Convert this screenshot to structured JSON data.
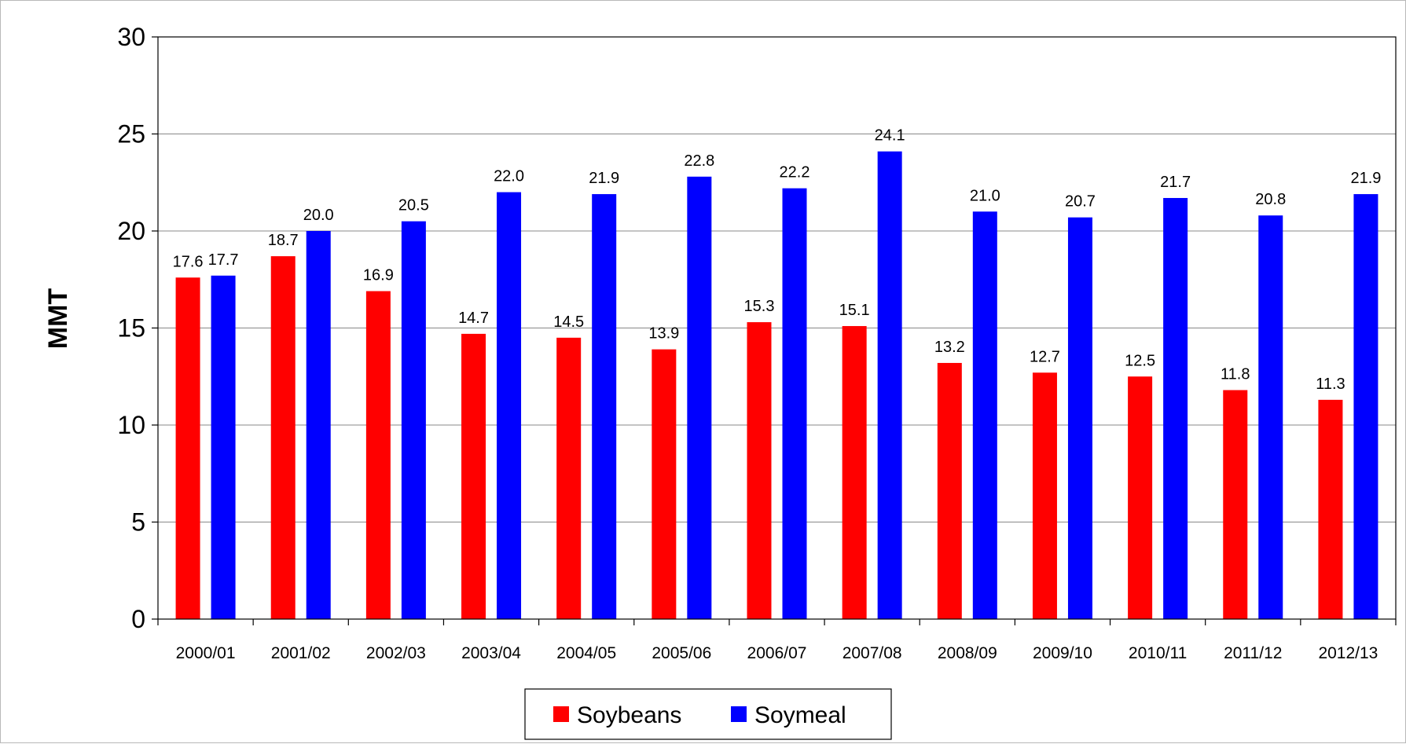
{
  "chart_data": {
    "type": "bar",
    "title": "",
    "xlabel": "",
    "ylabel": "MMT",
    "ylim": [
      0,
      30
    ],
    "yticks": [
      0,
      5,
      10,
      15,
      20,
      25,
      30
    ],
    "grid": true,
    "legend_position": "bottom",
    "categories": [
      "2000/01",
      "2001/02",
      "2002/03",
      "2003/04",
      "2004/05",
      "2005/06",
      "2006/07",
      "2007/08",
      "2008/09",
      "2009/10",
      "2010/11",
      "2011/12",
      "2012/13"
    ],
    "series": [
      {
        "name": "Soybeans",
        "color": "#ff0000",
        "values": [
          17.6,
          18.7,
          16.9,
          14.7,
          14.5,
          13.9,
          15.3,
          15.1,
          13.2,
          12.7,
          12.5,
          11.8,
          11.3
        ]
      },
      {
        "name": "Soymeal",
        "color": "#0000ff",
        "values": [
          17.7,
          20.0,
          20.5,
          22.0,
          21.9,
          22.8,
          22.2,
          24.1,
          21.0,
          20.7,
          21.7,
          20.8,
          21.9
        ]
      }
    ]
  }
}
